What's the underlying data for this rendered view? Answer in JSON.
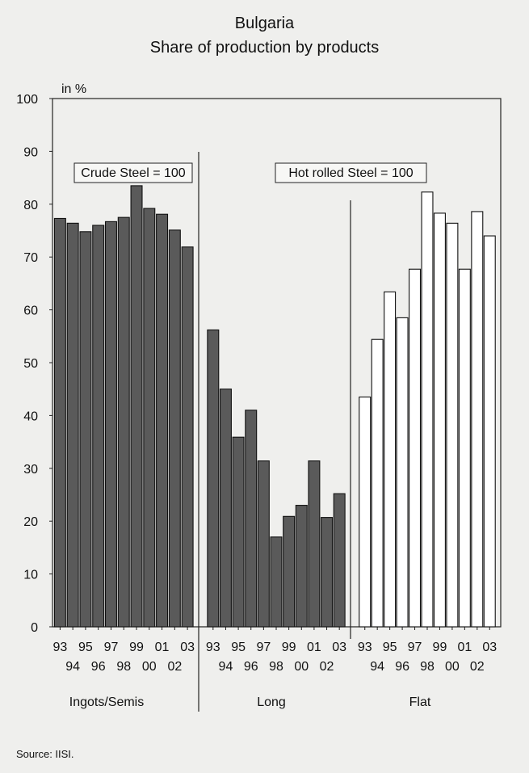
{
  "chart_data": {
    "type": "bar",
    "title": "Bulgaria",
    "subtitle": "Share of production by products",
    "ylabel": "in %",
    "ylim": [
      0,
      100
    ],
    "yticks": [
      0,
      10,
      20,
      30,
      40,
      50,
      60,
      70,
      80,
      90,
      100
    ],
    "grid": false,
    "panels": [
      {
        "name": "Ingots/Semis",
        "note": "Crude Steel = 100",
        "color": "#5a5a5a",
        "categories": [
          "93",
          "94",
          "95",
          "96",
          "97",
          "98",
          "99",
          "00",
          "01",
          "02",
          "03"
        ],
        "values": [
          77.3,
          76.4,
          74.8,
          76.0,
          76.7,
          77.5,
          83.5,
          79.2,
          78.1,
          75.1,
          71.9
        ]
      },
      {
        "name": "Long",
        "note": "Hot rolled Steel = 100",
        "color": "#5a5a5a",
        "categories": [
          "93",
          "94",
          "95",
          "96",
          "97",
          "98",
          "99",
          "00",
          "01",
          "02",
          "03"
        ],
        "values": [
          56.2,
          45.0,
          35.9,
          41.0,
          31.4,
          17.0,
          20.9,
          23.0,
          31.4,
          20.7,
          25.2
        ]
      },
      {
        "name": "Flat",
        "color": "#ffffff",
        "categories": [
          "93",
          "94",
          "95",
          "96",
          "97",
          "98",
          "99",
          "00",
          "01",
          "02",
          "03"
        ],
        "values": [
          43.5,
          54.4,
          63.4,
          58.5,
          67.7,
          82.3,
          78.3,
          76.4,
          67.7,
          78.6,
          74.0
        ]
      }
    ]
  },
  "source": "Source: IISI.",
  "icons": {
    "notes": "none"
  }
}
